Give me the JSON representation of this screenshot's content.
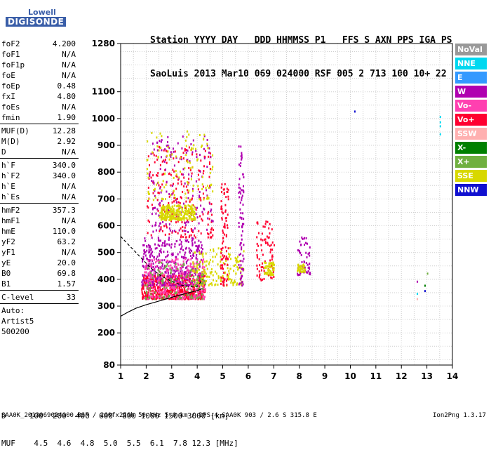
{
  "logo": {
    "line1": "Lowell",
    "line2": "DIGISONDE"
  },
  "header": {
    "line1": "Station YYYY DAY   DDD HHMMSS P1   FFS S AXN PPS IGA PS",
    "line2": "SaoLuis 2013 Mar10 069 024000 RSF 005 2 713 100 10+ 22"
  },
  "params": {
    "group1": [
      {
        "label": "foF2",
        "value": "4.200"
      },
      {
        "label": "foF1",
        "value": "N/A"
      },
      {
        "label": "foF1p",
        "value": "N/A"
      },
      {
        "label": "foE",
        "value": "N/A"
      },
      {
        "label": "foEp",
        "value": "0.48"
      },
      {
        "label": "fxI",
        "value": "4.80"
      },
      {
        "label": "foEs",
        "value": "N/A"
      },
      {
        "label": "fmin",
        "value": "1.90"
      }
    ],
    "group2": [
      {
        "label": "MUF(D)",
        "value": "12.28"
      },
      {
        "label": "M(D)",
        "value": "2.92"
      },
      {
        "label": "D",
        "value": "N/A"
      }
    ],
    "group3": [
      {
        "label": "h`F",
        "value": "340.0"
      },
      {
        "label": "h`F2",
        "value": "340.0"
      },
      {
        "label": "h`E",
        "value": "N/A"
      },
      {
        "label": "h`Es",
        "value": "N/A"
      }
    ],
    "group4": [
      {
        "label": "hmF2",
        "value": "357.3"
      },
      {
        "label": "hmF1",
        "value": "N/A"
      },
      {
        "label": "hmE",
        "value": "110.0"
      },
      {
        "label": "yF2",
        "value": "63.2"
      },
      {
        "label": "yF1",
        "value": "N/A"
      },
      {
        "label": "yE",
        "value": "20.0"
      },
      {
        "label": "B0",
        "value": "69.8"
      },
      {
        "label": "B1",
        "value": "1.57"
      }
    ],
    "group5": [
      {
        "label": "C-level",
        "value": "33"
      }
    ],
    "group6": [
      "Auto:",
      "Artist5",
      "500200"
    ]
  },
  "legend": [
    {
      "label": "NoVal",
      "color": "#999999"
    },
    {
      "label": "NNE",
      "color": "#00d8f0"
    },
    {
      "label": "E",
      "color": "#3399ff"
    },
    {
      "label": "W",
      "color": "#b000b0"
    },
    {
      "label": "Vo-",
      "color": "#ff40b0"
    },
    {
      "label": "Vo+",
      "color": "#ff0030"
    },
    {
      "label": "SSW",
      "color": "#ffb0b0"
    },
    {
      "label": "X-",
      "color": "#008000"
    },
    {
      "label": "X+",
      "color": "#70b040"
    },
    {
      "label": "SSE",
      "color": "#d8d800"
    },
    {
      "label": "NNW",
      "color": "#1010d0"
    }
  ],
  "footer": {
    "d_row": "D     100  200  400  600  800 1000 1500 3000 [km]",
    "muf_row": "MUF    4.5  4.6  4.8  5.0  5.5  6.1  7.8 12.3 [MHz]",
    "bottom": "SAA0K_2013069024000.RSF / 260fx256h 50 kHz 5.0 km / DPS-4 SAA0K 903 / 2.6 S 315.8 E",
    "version": "Ion2Png 1.3.17"
  },
  "chart_data": {
    "type": "scatter",
    "title": "",
    "xlabel": "",
    "ylabel": "",
    "xlim": [
      1,
      14
    ],
    "ylim": [
      80,
      1280
    ],
    "x_ticks": [
      1,
      2,
      3,
      4,
      5,
      6,
      7,
      8,
      9,
      10,
      11,
      12,
      13,
      14
    ],
    "y_ticks": [
      80,
      200,
      300,
      400,
      500,
      600,
      700,
      800,
      900,
      1000,
      1100,
      1280
    ],
    "grid": true,
    "profile_curve": {
      "x": [
        0.8,
        1.0,
        1.3,
        1.6,
        2.0,
        2.4,
        2.8,
        3.2,
        3.6,
        4.0,
        4.2
      ],
      "y": [
        250,
        262,
        278,
        292,
        305,
        316,
        327,
        338,
        348,
        358,
        365
      ]
    },
    "profile_upper_curve": {
      "x": [
        1.0,
        1.3,
        1.6,
        1.9,
        2.2,
        2.6,
        3.0,
        3.4,
        3.8,
        4.0,
        4.1,
        4.2
      ],
      "y": [
        560,
        530,
        500,
        470,
        440,
        412,
        392,
        378,
        372,
        374,
        385,
        400
      ]
    },
    "clusters": [
      {
        "name": "F trace low",
        "color": "#ff0030",
        "x": [
          1.8,
          4.3
        ],
        "y": [
          330,
          420
        ],
        "n": 600
      },
      {
        "name": "F trace mid",
        "color": "#b000b0",
        "x": [
          1.8,
          4.2
        ],
        "y": [
          380,
          560
        ],
        "n": 400
      },
      {
        "name": "F trace magenta",
        "color": "#ff40b0",
        "x": [
          1.9,
          4.3
        ],
        "y": [
          330,
          480
        ],
        "n": 300
      },
      {
        "name": "Spread F high",
        "color": "#ff0030",
        "x": [
          2.0,
          4.6
        ],
        "y": [
          560,
          900
        ],
        "n": 220
      },
      {
        "name": "Spread F high purple",
        "color": "#b000b0",
        "x": [
          2.1,
          4.6
        ],
        "y": [
          580,
          940
        ],
        "n": 160
      },
      {
        "name": "SSE band",
        "color": "#d8d800",
        "x": [
          2.5,
          3.9
        ],
        "y": [
          625,
          680
        ],
        "n": 260
      },
      {
        "name": "SSE spread",
        "color": "#d8d800",
        "x": [
          2.0,
          4.6
        ],
        "y": [
          700,
          960
        ],
        "n": 110
      },
      {
        "name": "SSE low",
        "color": "#d8d800",
        "x": [
          3.8,
          5.8
        ],
        "y": [
          380,
          520
        ],
        "n": 160
      },
      {
        "name": "X+ scatter",
        "color": "#70b040",
        "x": [
          1.9,
          4.3
        ],
        "y": [
          330,
          470
        ],
        "n": 120
      },
      {
        "name": "Column 5",
        "color": "#ff0030",
        "x": [
          4.9,
          5.2
        ],
        "y": [
          380,
          760
        ],
        "n": 90
      },
      {
        "name": "Column 5.7",
        "color": "#b000b0",
        "x": [
          5.6,
          5.8
        ],
        "y": [
          380,
          900
        ],
        "n": 80
      },
      {
        "name": "Column 6.5",
        "color": "#ff0030",
        "x": [
          6.3,
          7.0
        ],
        "y": [
          400,
          620
        ],
        "n": 80
      },
      {
        "name": "Cluster 6.7 SSE",
        "color": "#d8d800",
        "x": [
          6.6,
          7.0
        ],
        "y": [
          420,
          470
        ],
        "n": 60
      },
      {
        "name": "Column 8",
        "color": "#b000b0",
        "x": [
          7.9,
          8.4
        ],
        "y": [
          420,
          560
        ],
        "n": 60
      },
      {
        "name": "Cluster 8 SSE",
        "color": "#d8d800",
        "x": [
          7.9,
          8.2
        ],
        "y": [
          430,
          460
        ],
        "n": 40
      }
    ],
    "isolated_points": [
      {
        "x": 10.15,
        "y": 1030,
        "color": "#1010d0"
      },
      {
        "x": 12.6,
        "y": 395,
        "color": "#b000b0"
      },
      {
        "x": 12.6,
        "y": 350,
        "color": "#00d8f0"
      },
      {
        "x": 12.6,
        "y": 330,
        "color": "#ffb0b0"
      },
      {
        "x": 12.9,
        "y": 380,
        "color": "#008000"
      },
      {
        "x": 12.9,
        "y": 360,
        "color": "#1010d0"
      },
      {
        "x": 13.0,
        "y": 425,
        "color": "#70b040"
      },
      {
        "x": 13.5,
        "y": 1010,
        "color": "#00d8f0"
      },
      {
        "x": 13.5,
        "y": 990,
        "color": "#00d8f0"
      },
      {
        "x": 13.5,
        "y": 975,
        "color": "#00d8f0"
      },
      {
        "x": 13.5,
        "y": 945,
        "color": "#00d8f0"
      }
    ]
  }
}
